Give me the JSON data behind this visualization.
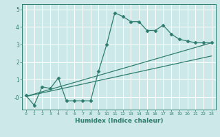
{
  "xlabel": "Humidex (Indice chaleur)",
  "ylabel": "",
  "bg_color": "#cce8e8",
  "grid_color": "#ffffff",
  "line_color": "#2e7d6e",
  "xlim": [
    -0.5,
    23.5
  ],
  "ylim": [
    -0.7,
    5.3
  ],
  "yticks": [
    0,
    1,
    2,
    3,
    4,
    5
  ],
  "ytick_labels": [
    "-0",
    "1",
    "2",
    "3",
    "4",
    "5"
  ],
  "xticks": [
    0,
    1,
    2,
    3,
    4,
    5,
    6,
    7,
    8,
    9,
    10,
    11,
    12,
    13,
    14,
    15,
    16,
    17,
    18,
    19,
    20,
    21,
    22,
    23
  ],
  "line1_x": [
    0,
    1,
    2,
    3,
    4,
    5,
    6,
    7,
    8,
    9,
    10,
    11,
    12,
    13,
    14,
    15,
    16,
    17,
    18,
    19,
    20,
    21,
    22,
    23
  ],
  "line1_y": [
    0.1,
    -0.45,
    0.6,
    0.5,
    1.1,
    -0.2,
    -0.2,
    -0.2,
    -0.2,
    1.5,
    3.0,
    4.8,
    4.6,
    4.3,
    4.3,
    3.8,
    3.8,
    4.1,
    3.6,
    3.3,
    3.2,
    3.1,
    3.1,
    3.1
  ],
  "line2_x": [
    0,
    23
  ],
  "line2_y": [
    0.05,
    2.35
  ],
  "line3_x": [
    0,
    23
  ],
  "line3_y": [
    0.05,
    3.1
  ]
}
